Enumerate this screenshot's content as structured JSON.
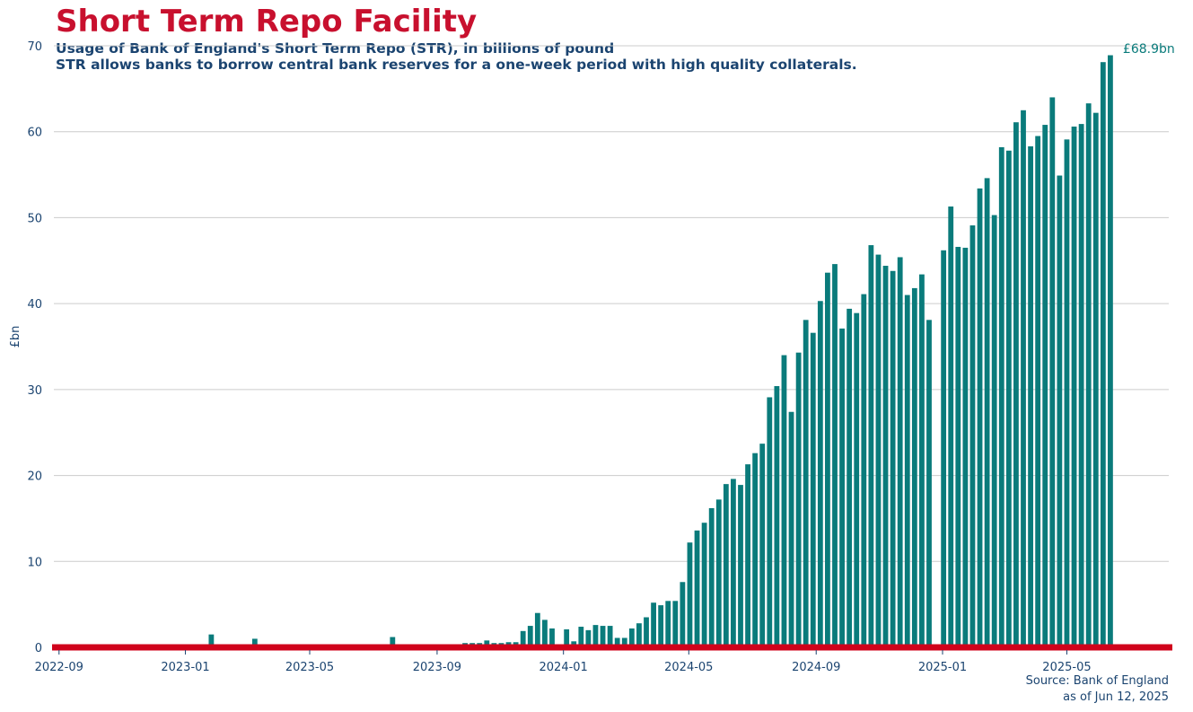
{
  "chart_data": {
    "type": "bar",
    "title": "Short Term Repo Facility",
    "subtitle_1": "Usage of Bank of England's Short Term Repo (STR), in billions of pound",
    "subtitle_2": "STR allows banks to borrow central bank reserves for a one-week period with high quality collaterals.",
    "ylabel": "£bn",
    "xlabel": "",
    "ylim": [
      0,
      70
    ],
    "y_ticks": [
      0,
      10,
      20,
      30,
      40,
      50,
      60,
      70
    ],
    "x_ticks": [
      "2022-09",
      "2023-01",
      "2023-05",
      "2023-09",
      "2024-01",
      "2024-05",
      "2024-09",
      "2025-01",
      "2025-05"
    ],
    "x_range": [
      "2022-08-27",
      "2025-08-10"
    ],
    "last_value_label": "£68.9bn",
    "source": "Source: Bank of England",
    "as_of": "as of Jun 12, 2025",
    "grid": "horizontal",
    "colors": {
      "bars": "#0a7b7b",
      "title": "#c8102e",
      "baseline": "#d0021b",
      "text": "#1b4470",
      "grid": "#cccccc",
      "last_label": "#0a7b7b"
    },
    "series": [
      {
        "x": [
          "2023-01-26",
          "2023-03-09",
          "2023-07-20",
          "2023-09-28",
          "2023-10-05",
          "2023-10-12",
          "2023-10-19",
          "2023-10-26",
          "2023-11-02",
          "2023-11-09",
          "2023-11-16",
          "2023-11-23",
          "2023-11-30",
          "2023-12-07",
          "2023-12-14",
          "2023-12-21",
          "2024-01-04",
          "2024-01-11",
          "2024-01-18",
          "2024-01-25",
          "2024-02-01",
          "2024-02-08",
          "2024-02-15",
          "2024-02-22",
          "2024-02-29",
          "2024-03-07",
          "2024-03-14",
          "2024-03-21",
          "2024-03-28",
          "2024-04-04",
          "2024-04-11",
          "2024-04-18",
          "2024-04-25",
          "2024-05-02",
          "2024-05-09",
          "2024-05-16",
          "2024-05-23",
          "2024-05-30",
          "2024-06-06",
          "2024-06-13",
          "2024-06-20",
          "2024-06-27",
          "2024-07-04",
          "2024-07-11",
          "2024-07-18",
          "2024-07-25",
          "2024-08-01",
          "2024-08-08",
          "2024-08-15",
          "2024-08-22",
          "2024-08-29",
          "2024-09-05",
          "2024-09-12",
          "2024-09-19",
          "2024-09-26",
          "2024-10-03",
          "2024-10-10",
          "2024-10-17",
          "2024-10-24",
          "2024-10-31",
          "2024-11-07",
          "2024-11-14",
          "2024-11-21",
          "2024-11-28",
          "2024-12-05",
          "2024-12-12",
          "2024-12-19",
          "2025-01-02",
          "2025-01-09",
          "2025-01-16",
          "2025-01-23",
          "2025-01-30",
          "2025-02-06",
          "2025-02-13",
          "2025-02-20",
          "2025-02-27",
          "2025-03-06",
          "2025-03-13",
          "2025-03-20",
          "2025-03-27",
          "2025-04-03",
          "2025-04-10",
          "2025-04-17",
          "2025-04-24",
          "2025-05-01",
          "2025-05-08",
          "2025-05-15",
          "2025-05-22",
          "2025-05-29",
          "2025-06-05",
          "2025-06-12"
        ],
        "values": [
          1.5,
          1.0,
          1.2,
          0.5,
          0.5,
          0.5,
          0.8,
          0.5,
          0.5,
          0.6,
          0.6,
          1.9,
          2.5,
          4.0,
          3.2,
          2.2,
          2.1,
          0.7,
          2.4,
          2.0,
          2.6,
          2.5,
          2.5,
          1.1,
          1.1,
          2.2,
          2.8,
          3.5,
          5.2,
          4.9,
          5.4,
          5.4,
          7.6,
          12.2,
          13.6,
          14.5,
          16.2,
          17.2,
          19.0,
          19.6,
          18.9,
          21.3,
          22.6,
          23.7,
          29.1,
          30.4,
          34.0,
          27.4,
          34.3,
          38.1,
          36.6,
          40.3,
          43.6,
          44.6,
          37.1,
          39.4,
          38.9,
          41.1,
          46.8,
          45.7,
          44.4,
          43.8,
          45.4,
          41.0,
          41.8,
          43.4,
          38.1,
          46.2,
          51.3,
          46.6,
          46.5,
          49.1,
          53.4,
          54.6,
          50.3,
          58.2,
          57.8,
          61.1,
          62.5,
          58.3,
          59.5,
          60.8,
          64.0,
          54.9,
          59.1,
          60.6,
          60.9,
          63.3,
          62.2,
          68.1,
          68.9
        ]
      }
    ]
  }
}
